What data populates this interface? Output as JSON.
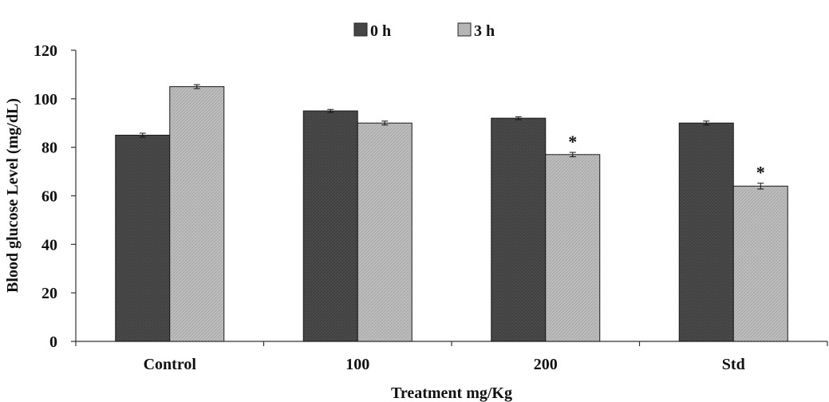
{
  "chart_data": {
    "type": "bar",
    "title": "",
    "xlabel": "Treatment mg/Kg",
    "ylabel": "Blood glucose Level (mg/dL)",
    "ylim": [
      0,
      120
    ],
    "yticks": [
      "0",
      "20",
      "40",
      "60",
      "80",
      "100",
      "120"
    ],
    "categories": [
      "Control",
      "100",
      "200",
      "Std"
    ],
    "series": [
      {
        "name": "0 h",
        "values": [
          85,
          95,
          92,
          90
        ],
        "errors": [
          0.8,
          0.6,
          0.6,
          0.8
        ],
        "color": "#4a4a4a"
      },
      {
        "name": "3 h",
        "values": [
          105,
          90,
          77,
          64
        ],
        "errors": [
          0.8,
          0.8,
          0.9,
          1.2
        ],
        "color": "#b8b8b8"
      }
    ],
    "annotations": [
      {
        "category": "200",
        "series": "3 h",
        "text": "*"
      },
      {
        "category": "Std",
        "series": "3 h",
        "text": "*"
      }
    ],
    "grid": false,
    "legend_position": "top"
  }
}
